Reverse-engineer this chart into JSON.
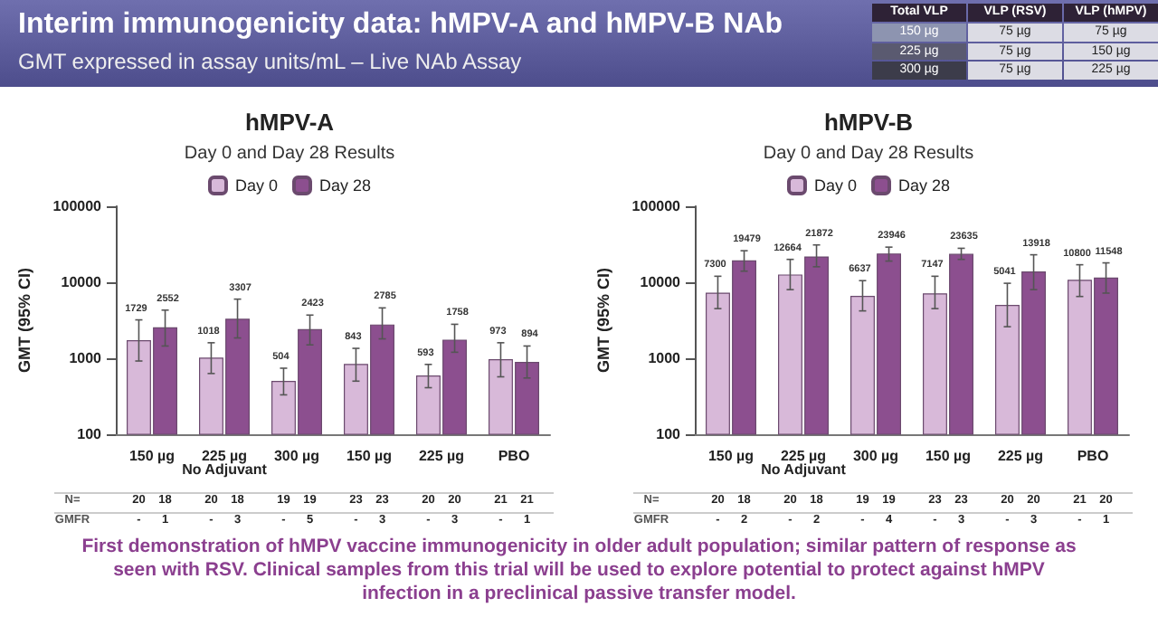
{
  "chart_data": [
    {
      "type": "other",
      "title": "Interim immunogenicity data: hMPV-A and hMPV-B NAb",
      "subtitle": "GMT expressed in assay units/mL – Live NAb Assay",
      "annotations": [
        "Total VLP",
        "VLP (RSV)",
        "VLP (hMPV)",
        "150 µg",
        "75 µg",
        "75 µg",
        "225 µg",
        "75 µg",
        "150 µg",
        "300 µg",
        "75 µg",
        "225 µg",
        "First demonstration of hMPV vaccine immunogenicity in older adult population; similar pattern of response as seen with RSV. Clinical samples from this trial will be used to explore potential to protect against hMPV infection in a preclinical passive transfer model."
      ]
    },
    {
      "type": "bar",
      "title": "hMPV-A",
      "subtitle": "Day 0 and Day 28 Results",
      "ylabel": "GMT (95% CI)",
      "categories": [
        "150 µg",
        "225 µg",
        "300 µg",
        "150 µg",
        "225 µg",
        "PBO"
      ],
      "series": [
        {
          "name": "Day 0",
          "color": "#d8b9d9",
          "values": [
            1729,
            1018,
            504,
            843,
            593,
            973
          ],
          "errors": [
            [
              920,
              3200
            ],
            [
              630,
              1600
            ],
            [
              330,
              740
            ],
            [
              500,
              1350
            ],
            [
              410,
              830
            ],
            [
              570,
              1600
            ]
          ]
        },
        {
          "name": "Day 28",
          "color": "#8c4f8f",
          "values": [
            2552,
            3307,
            2423,
            2785,
            1758,
            894
          ],
          "errors": [
            [
              1450,
              4300
            ],
            [
              1850,
              6000
            ],
            [
              1500,
              3700
            ],
            [
              1800,
              4600
            ],
            [
              1200,
              2800
            ],
            [
              550,
              1450
            ]
          ]
        }
      ],
      "log": true,
      "ylim": [
        100,
        100000
      ],
      "yticks": [
        100,
        1000,
        10000,
        100000
      ],
      "grid": false,
      "legend": "top",
      "data_labels": true,
      "annotations": [
        "No Adjuvant",
        "N=",
        "20",
        "18",
        "20",
        "18",
        "19",
        "19",
        "23",
        "23",
        "20",
        "20",
        "21",
        "21",
        "GMFR",
        "-",
        "1",
        "-",
        "3",
        "-",
        "5",
        "-",
        "3",
        "-",
        "3",
        "-",
        "1"
      ]
    },
    {
      "type": "bar",
      "title": "hMPV-B",
      "subtitle": "Day 0 and Day 28 Results",
      "ylabel": "GMT (95% CI)",
      "categories": [
        "150 µg",
        "225 µg",
        "300 µg",
        "150 µg",
        "225 µg",
        "PBO"
      ],
      "series": [
        {
          "name": "Day 0",
          "color": "#d8b9d9",
          "values": [
            7300,
            12664,
            6637,
            7147,
            5041,
            10800
          ],
          "errors": [
            [
              4500,
              12000
            ],
            [
              8000,
              20000
            ],
            [
              4200,
              10500
            ],
            [
              4500,
              12000
            ],
            [
              2600,
              9700
            ],
            [
              6500,
              17000
            ]
          ]
        },
        {
          "name": "Day 28",
          "color": "#8c4f8f",
          "values": [
            19479,
            21872,
            23946,
            23635,
            13918,
            11548
          ],
          "errors": [
            [
              14000,
              26000
            ],
            [
              16000,
              31000
            ],
            [
              19000,
              29000
            ],
            [
              20000,
              28000
            ],
            [
              8000,
              23000
            ],
            [
              7200,
              18000
            ]
          ]
        }
      ],
      "log": true,
      "ylim": [
        100,
        100000
      ],
      "yticks": [
        100,
        1000,
        10000,
        100000
      ],
      "grid": false,
      "legend": "top",
      "data_labels": true,
      "annotations": [
        "No Adjuvant",
        "N=",
        "20",
        "18",
        "20",
        "18",
        "19",
        "19",
        "23",
        "23",
        "20",
        "20",
        "21",
        "20",
        "GMFR",
        "-",
        "2",
        "-",
        "2",
        "-",
        "4",
        "-",
        "3",
        "-",
        "3",
        "-",
        "1"
      ]
    }
  ]
}
